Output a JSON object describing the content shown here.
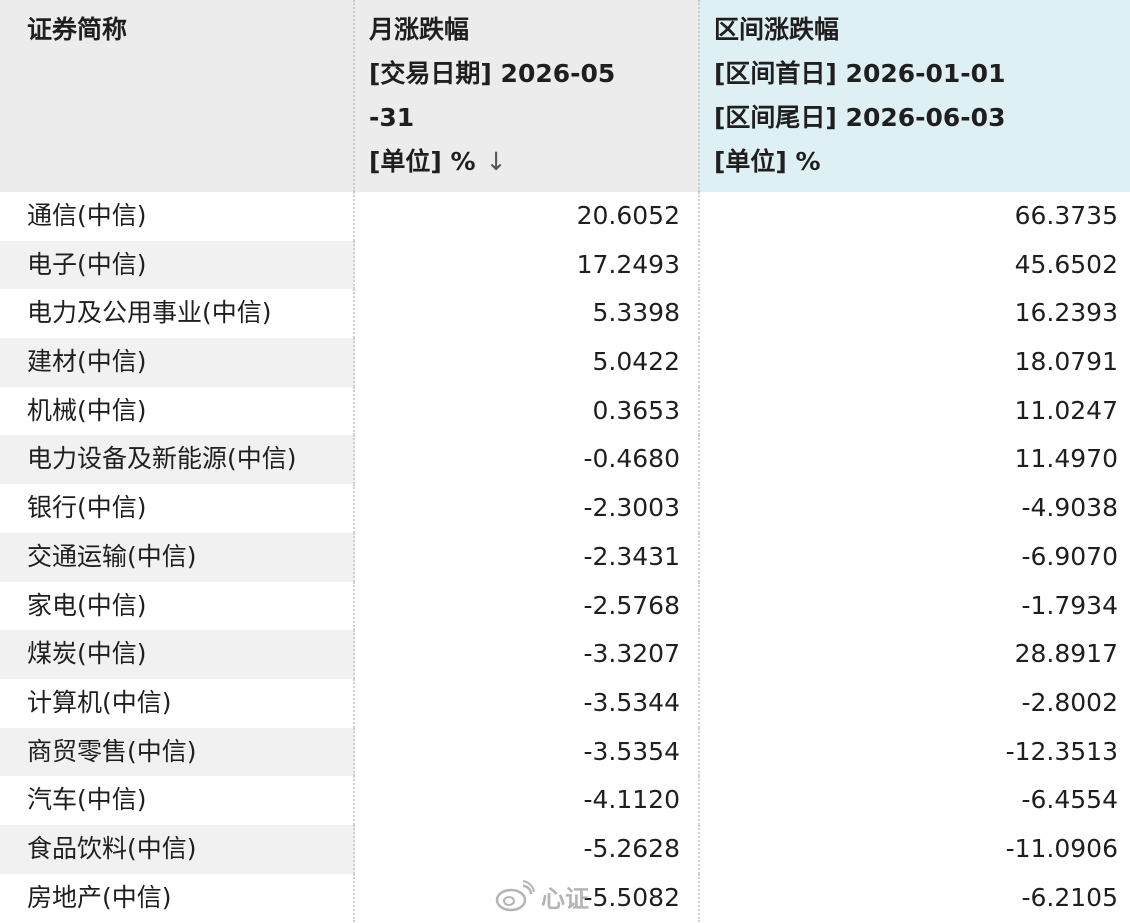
{
  "table": {
    "headers": {
      "name": "证券简称",
      "monthly": {
        "title": "月涨跌幅",
        "line2": "[交易日期] 2026-05",
        "line3": "-31",
        "unit": "[单位] %",
        "sort_icon": "↓"
      },
      "range": {
        "title": "区间涨跌幅",
        "line2": "[区间首日] 2026-01-01",
        "line3": "[区间尾日] 2026-06-03",
        "unit": "[单位] %"
      }
    },
    "rows": [
      {
        "name": "通信(中信)",
        "monthly": "20.6052",
        "range": "66.3735"
      },
      {
        "name": "电子(中信)",
        "monthly": "17.2493",
        "range": "45.6502"
      },
      {
        "name": "电力及公用事业(中信)",
        "monthly": "5.3398",
        "range": "16.2393"
      },
      {
        "name": "建材(中信)",
        "monthly": "5.0422",
        "range": "18.0791"
      },
      {
        "name": "机械(中信)",
        "monthly": "0.3653",
        "range": "11.0247"
      },
      {
        "name": "电力设备及新能源(中信)",
        "monthly": "-0.4680",
        "range": "11.4970"
      },
      {
        "name": "银行(中信)",
        "monthly": "-2.3003",
        "range": "-4.9038"
      },
      {
        "name": "交通运输(中信)",
        "monthly": "-2.3431",
        "range": "-6.9070"
      },
      {
        "name": "家电(中信)",
        "monthly": "-2.5768",
        "range": "-1.7934"
      },
      {
        "name": "煤炭(中信)",
        "monthly": "-3.3207",
        "range": "28.8917"
      },
      {
        "name": "计算机(中信)",
        "monthly": "-3.5344",
        "range": "-2.8002"
      },
      {
        "name": "商贸零售(中信)",
        "monthly": "-3.5354",
        "range": "-12.3513"
      },
      {
        "name": "汽车(中信)",
        "monthly": "-4.1120",
        "range": "-6.4554"
      },
      {
        "name": "食品饮料(中信)",
        "monthly": "-5.2628",
        "range": "-11.0906"
      },
      {
        "name": "房地产(中信)",
        "monthly": "-5.5082",
        "range": "-6.2105"
      }
    ]
  },
  "watermark": {
    "icon": "weibo-logo-icon",
    "text": "心证"
  },
  "colors": {
    "header_bg": "#ececec",
    "highlight_header_bg": "#dff0f5",
    "alt_row_bg": "#f1f1f1"
  }
}
